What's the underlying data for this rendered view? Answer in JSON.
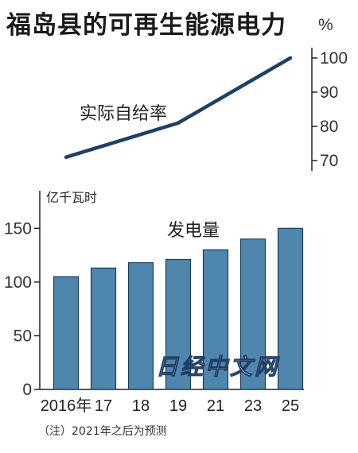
{
  "title": "福岛县的可再生能源电力",
  "note": "（注）2021年之后为预测",
  "watermark": "日经中文网",
  "chart_data": [
    {
      "type": "line",
      "title": "",
      "series": [
        {
          "name": "实际自给率",
          "color": "#1f3f66"
        }
      ],
      "x": [
        "2016年",
        "17",
        "18",
        "19",
        "21",
        "23",
        "25"
      ],
      "points": [
        {
          "x": "2016年",
          "y": 71
        },
        {
          "x": "19",
          "y": 81
        },
        {
          "x": "25",
          "y": 100
        }
      ],
      "unit": "%",
      "ylim": [
        67,
        103
      ],
      "yticks": [
        70,
        80,
        90,
        100
      ],
      "axis_side": "right",
      "grid": false
    },
    {
      "type": "bar",
      "title": "",
      "series": [
        {
          "name": "发电量",
          "color": "#4f86ae",
          "values": [
            105,
            113,
            118,
            121,
            130,
            140,
            150
          ]
        }
      ],
      "categories": [
        "2016年",
        "17",
        "18",
        "19",
        "21",
        "23",
        "25"
      ],
      "unit": "亿千瓦时",
      "ylim": [
        0,
        185
      ],
      "yticks": [
        0,
        50,
        100,
        150
      ],
      "axis_side": "left",
      "grid": false
    }
  ]
}
